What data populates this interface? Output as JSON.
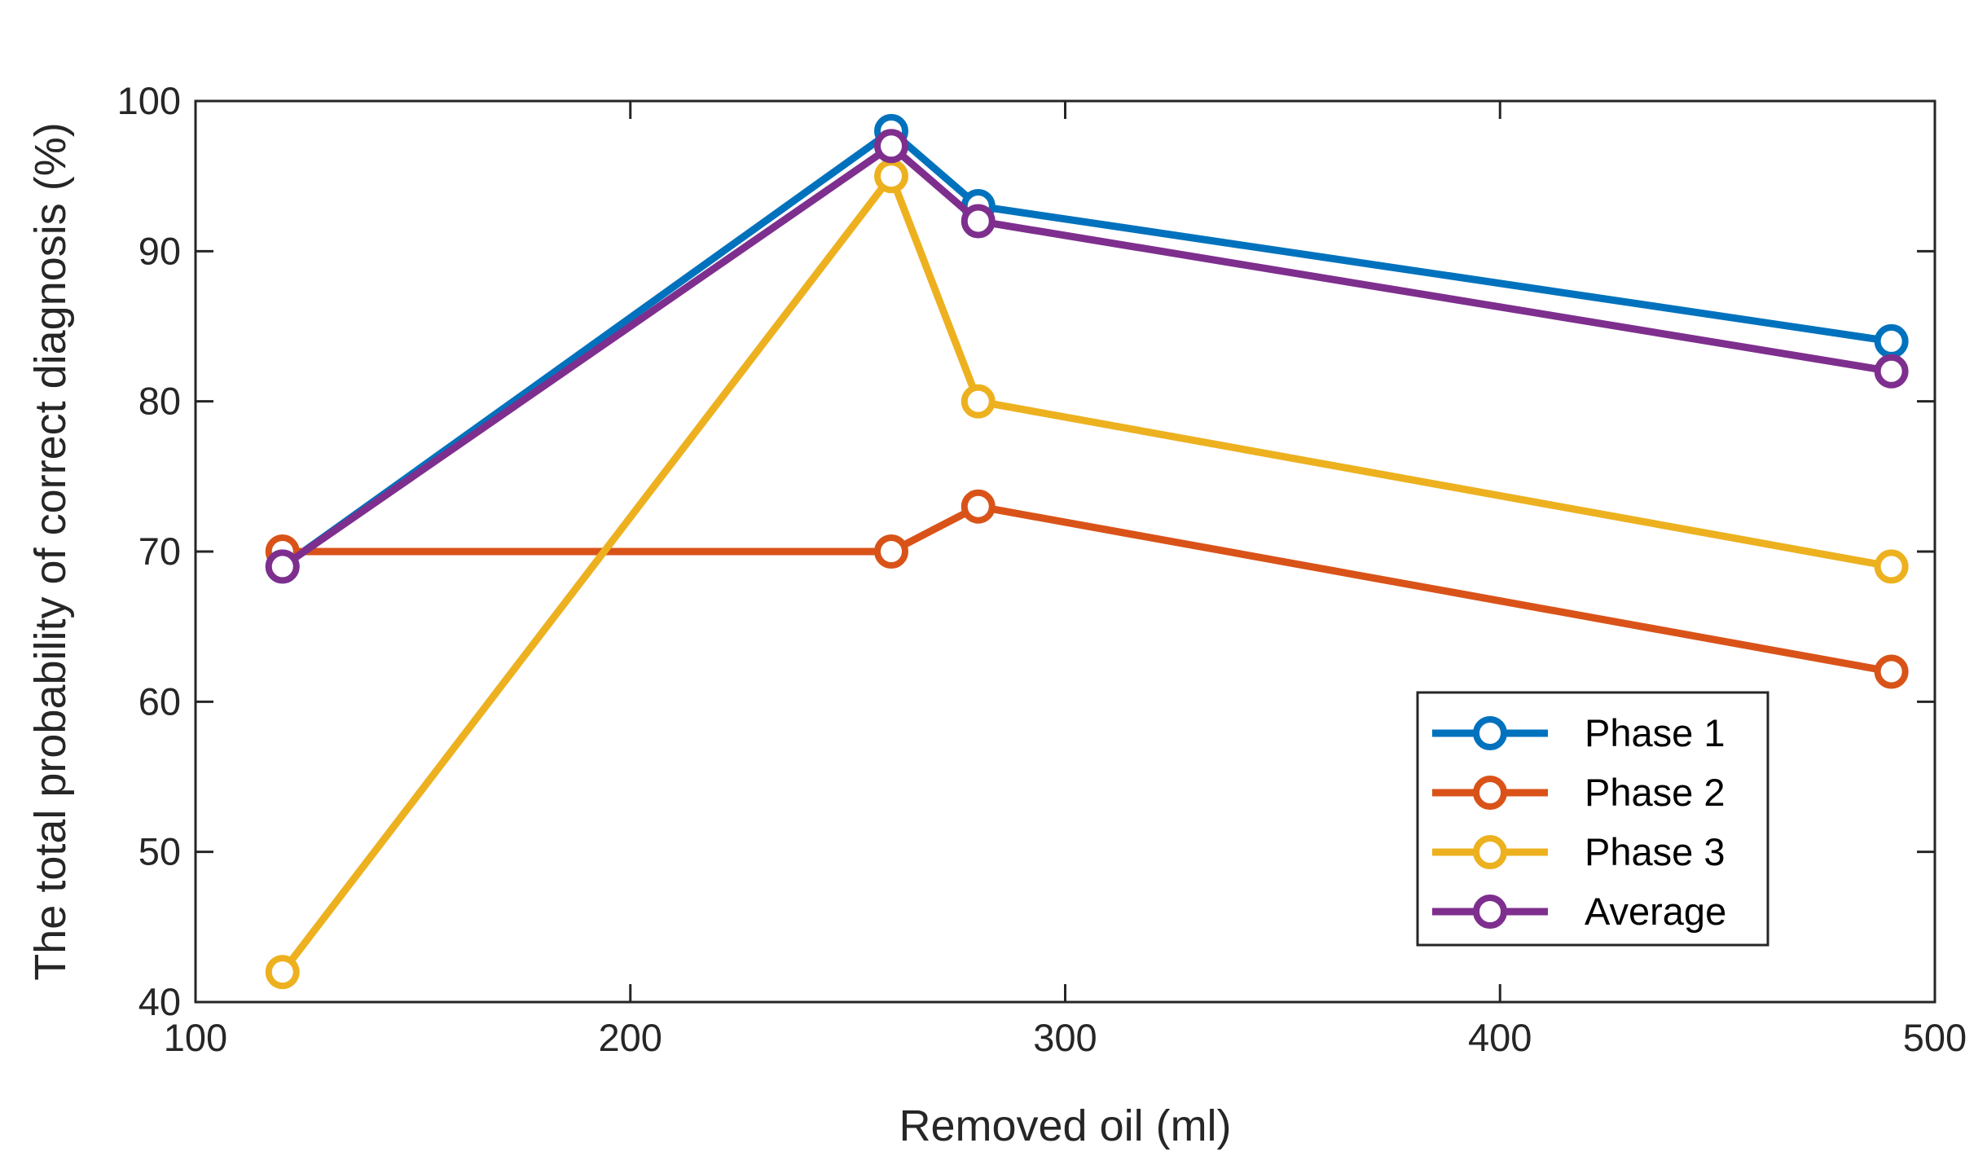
{
  "chart_data": {
    "type": "line",
    "title": "",
    "xlabel": "Removed oil (ml)",
    "ylabel": "The total probability of correct diagnosis (%)",
    "xlim": [
      100,
      500
    ],
    "ylim": [
      40,
      100
    ],
    "xticks": [
      100,
      200,
      300,
      400,
      500
    ],
    "yticks": [
      40,
      50,
      60,
      70,
      80,
      90,
      100
    ],
    "grid": false,
    "legend_position": "bottom-right",
    "x": [
      120,
      260,
      280,
      490
    ],
    "series": [
      {
        "name": "Phase 1",
        "color": "#0072BD",
        "marker": "circle",
        "values": [
          69,
          98,
          93,
          84
        ]
      },
      {
        "name": "Phase 2",
        "color": "#D95319",
        "marker": "circle",
        "values": [
          70,
          70,
          73,
          62
        ]
      },
      {
        "name": "Phase 3",
        "color": "#EDB120",
        "marker": "circle",
        "values": [
          42,
          95,
          80,
          69
        ]
      },
      {
        "name": "Average",
        "color": "#7E2F8E",
        "marker": "circle",
        "values": [
          69,
          97,
          92,
          82
        ]
      }
    ]
  }
}
